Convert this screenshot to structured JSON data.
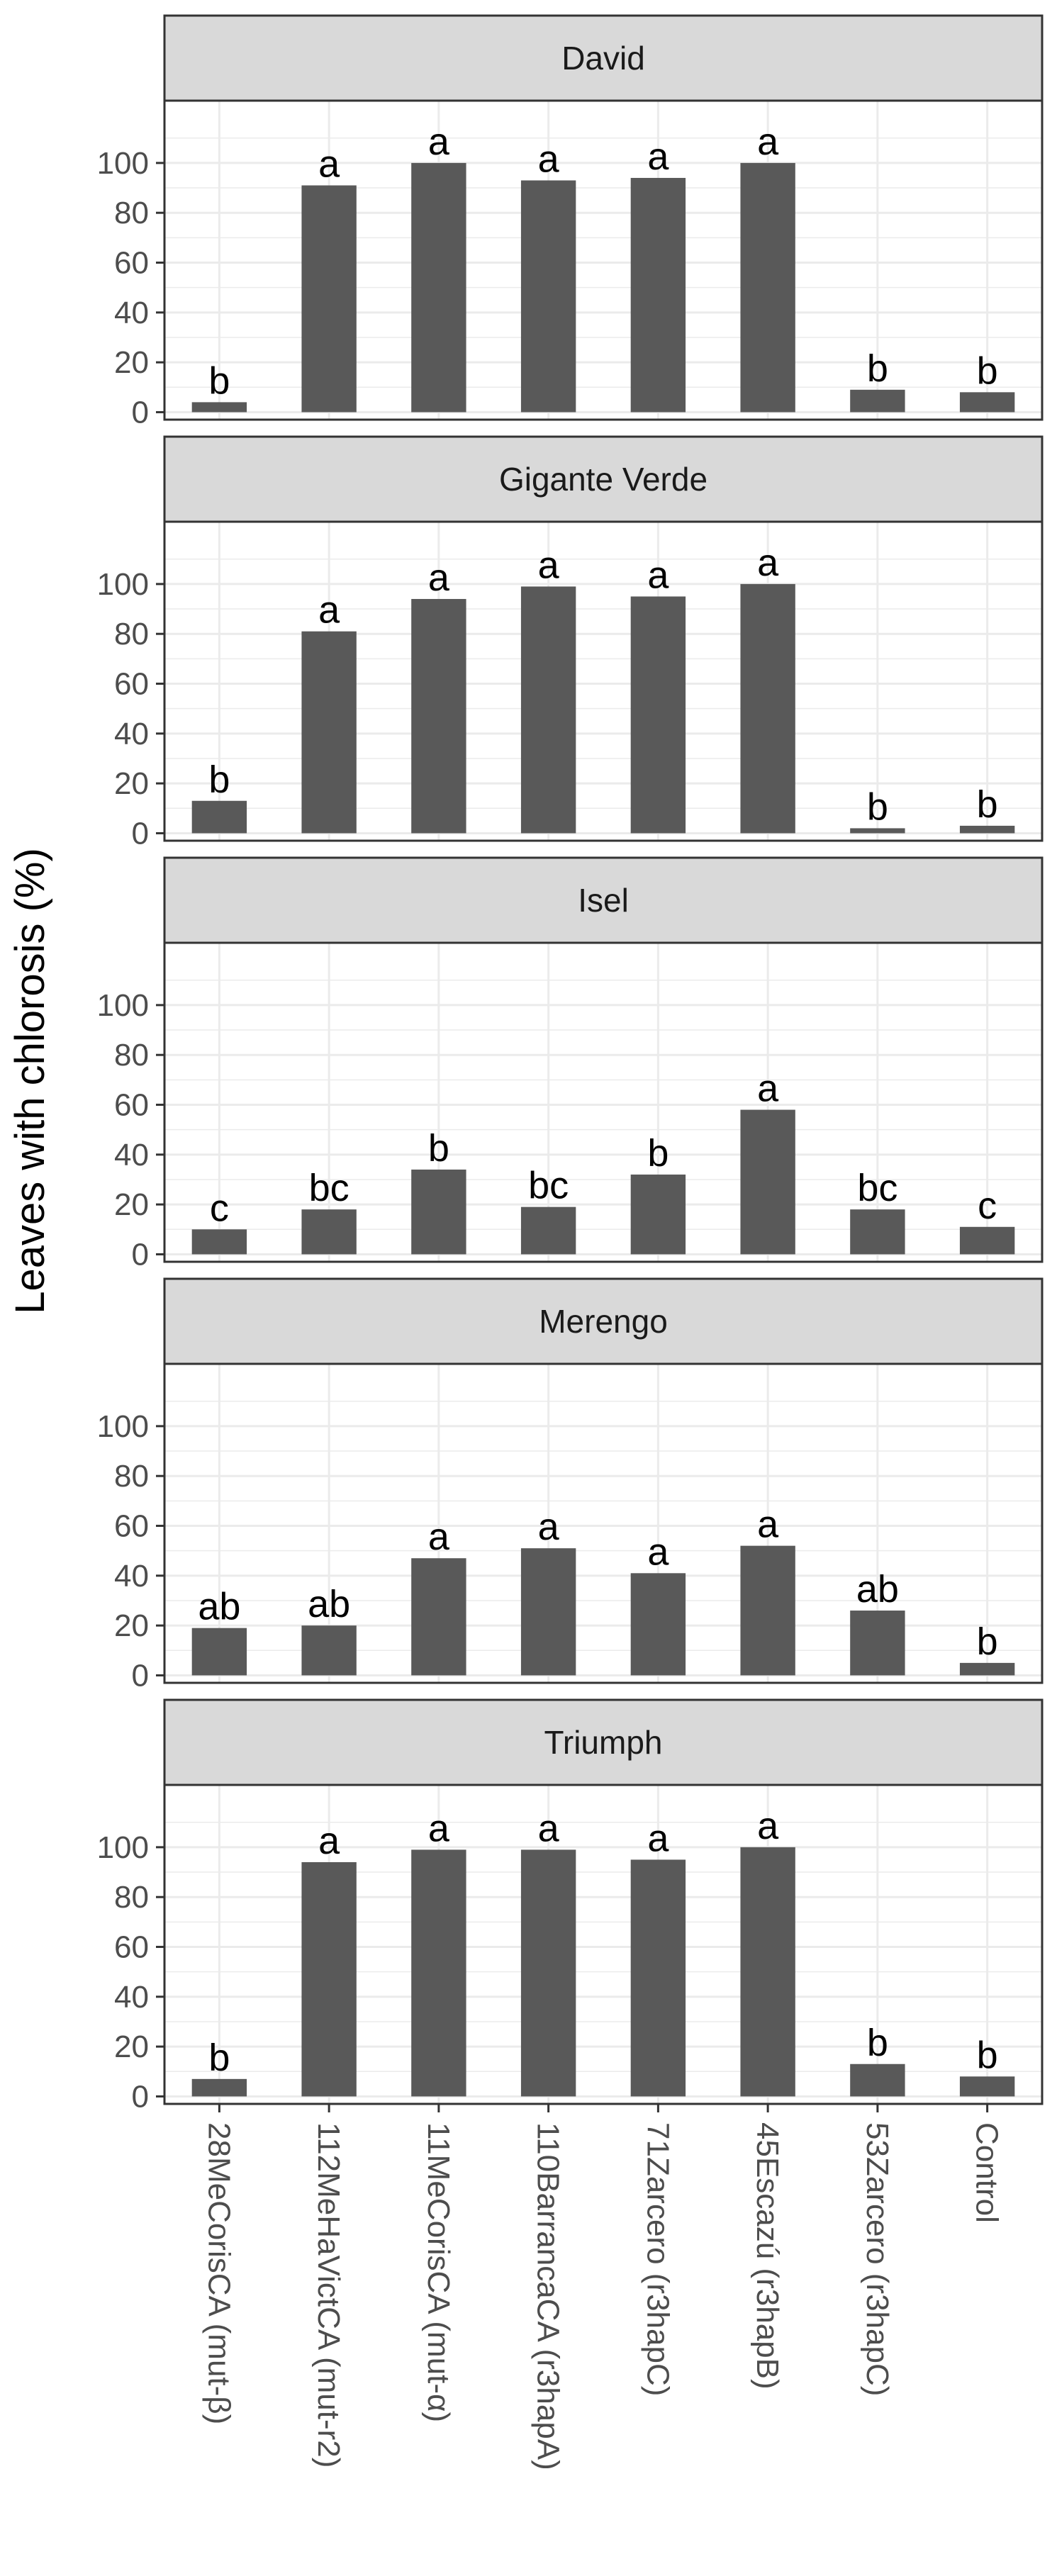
{
  "chart_data": {
    "type": "bar",
    "ylabel": "Leaves with chlorosis (%)",
    "xlabel": "",
    "yticks": [
      0,
      20,
      40,
      60,
      80,
      100
    ],
    "ylim": [
      -3,
      125
    ],
    "grid": true,
    "categories": [
      "28MeCorisCA (mut-β)",
      "112MeHaVictCA (mut-r2)",
      "11MeCorisCA (mut-α)",
      "110BarrancaCA (r3hapA)",
      "71Zarcero (r3hapC)",
      "45Escazú (r3hapB)",
      "53Zarcero (r3hapC)",
      "Control"
    ],
    "colors": {
      "bar": "#595959",
      "strip_fill": "#d9d9d9",
      "grid": "#ebebeb",
      "panel_border": "#333333"
    },
    "panels": [
      {
        "name": "David",
        "values": [
          4,
          91,
          100,
          93,
          94,
          100,
          9,
          8
        ],
        "letters": [
          "b",
          "a",
          "a",
          "a",
          "a",
          "a",
          "b",
          "b"
        ]
      },
      {
        "name": "Gigante Verde",
        "values": [
          13,
          81,
          94,
          99,
          95,
          100,
          2,
          3
        ],
        "letters": [
          "b",
          "a",
          "a",
          "a",
          "a",
          "a",
          "b",
          "b"
        ]
      },
      {
        "name": "Isel",
        "values": [
          10,
          18,
          34,
          19,
          32,
          58,
          18,
          11
        ],
        "letters": [
          "c",
          "bc",
          "b",
          "bc",
          "b",
          "a",
          "bc",
          "c"
        ]
      },
      {
        "name": "Merengo",
        "values": [
          19,
          20,
          47,
          51,
          41,
          52,
          26,
          5
        ],
        "letters": [
          "ab",
          "ab",
          "a",
          "a",
          "a",
          "a",
          "ab",
          "b"
        ]
      },
      {
        "name": "Triumph",
        "values": [
          7,
          94,
          99,
          99,
          95,
          100,
          13,
          8
        ],
        "letters": [
          "b",
          "a",
          "a",
          "a",
          "a",
          "a",
          "b",
          "b"
        ]
      }
    ]
  }
}
